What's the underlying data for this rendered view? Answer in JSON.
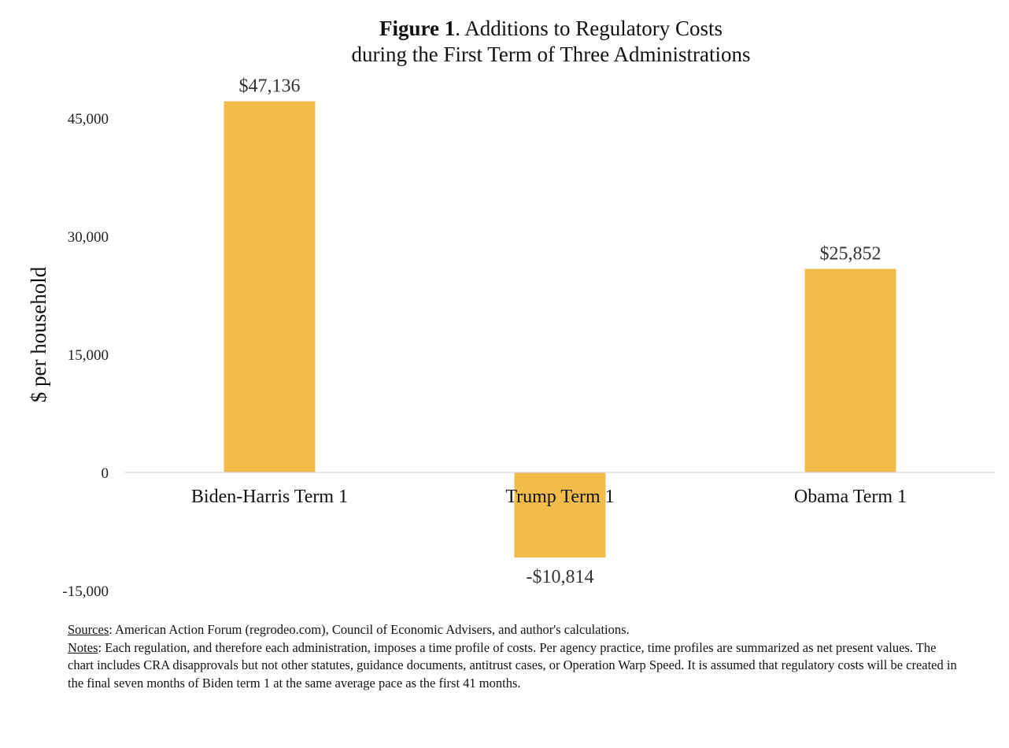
{
  "title": {
    "figure_label": "Figure 1",
    "line1": ". Additions to Regulatory Costs",
    "line2": "during the First Term of Three Administrations"
  },
  "chart_data": {
    "type": "bar",
    "categories": [
      "Biden-Harris Term 1",
      "Trump Term 1",
      "Obama Term 1"
    ],
    "values": [
      47136,
      -10814,
      25852
    ],
    "data_labels": [
      "$47,136",
      "-$10,814",
      "$25,852"
    ],
    "ylabel": "$ per household",
    "ylim": [
      -15000,
      47000
    ],
    "yticks": [
      -15000,
      0,
      15000,
      30000,
      45000
    ],
    "ytick_labels": [
      "-15,000",
      "0",
      "15,000",
      "30,000",
      "45,000"
    ],
    "grid": false,
    "legend": "none",
    "bar_color": "#F2BC4C",
    "baseline_color": "#D9D9D9"
  },
  "notes": {
    "sources_label": "Sources",
    "sources_text": ": American Action Forum (regrodeo.com), Council of Economic Advisers, and author's calculations.",
    "notes_label": "Notes",
    "notes_text": ": Each regulation, and therefore each administration, imposes a time profile of costs.  Per agency practice, time profiles are summarized as net present values.  The chart includes CRA disapprovals but not other statutes, guidance documents, antitrust cases, or Operation Warp Speed.  It is assumed that regulatory costs will be created in the final seven months of Biden term 1 at the same average pace as the first 41 months."
  }
}
